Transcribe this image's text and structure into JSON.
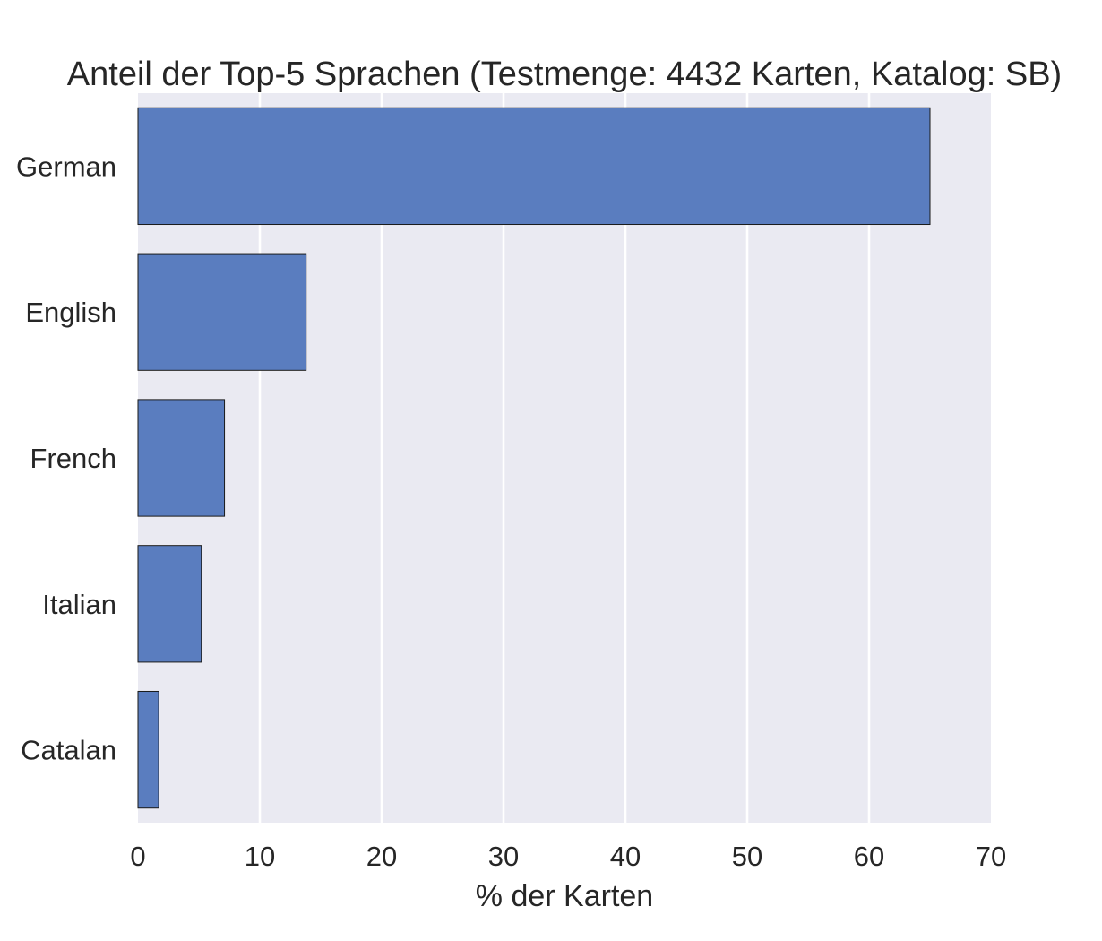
{
  "chart_data": {
    "type": "bar",
    "orientation": "horizontal",
    "title": "Anteil der Top-5 Sprachen (Testmenge: 4432 Karten, Katalog: SB)",
    "xlabel": "% der Karten",
    "ylabel": "",
    "categories": [
      "German",
      "English",
      "French",
      "Italian",
      "Catalan"
    ],
    "values": [
      65.0,
      13.8,
      7.1,
      5.2,
      1.7
    ],
    "xlim": [
      0,
      70
    ],
    "xticks": [
      0,
      10,
      20,
      30,
      40,
      50,
      60,
      70
    ],
    "grid": true,
    "colors": {
      "bar": "#5a7dbf",
      "bar_edge": "#1a1a1a",
      "plot_background": "#eaeaf2",
      "grid": "#ffffff",
      "text": "#262626"
    }
  }
}
